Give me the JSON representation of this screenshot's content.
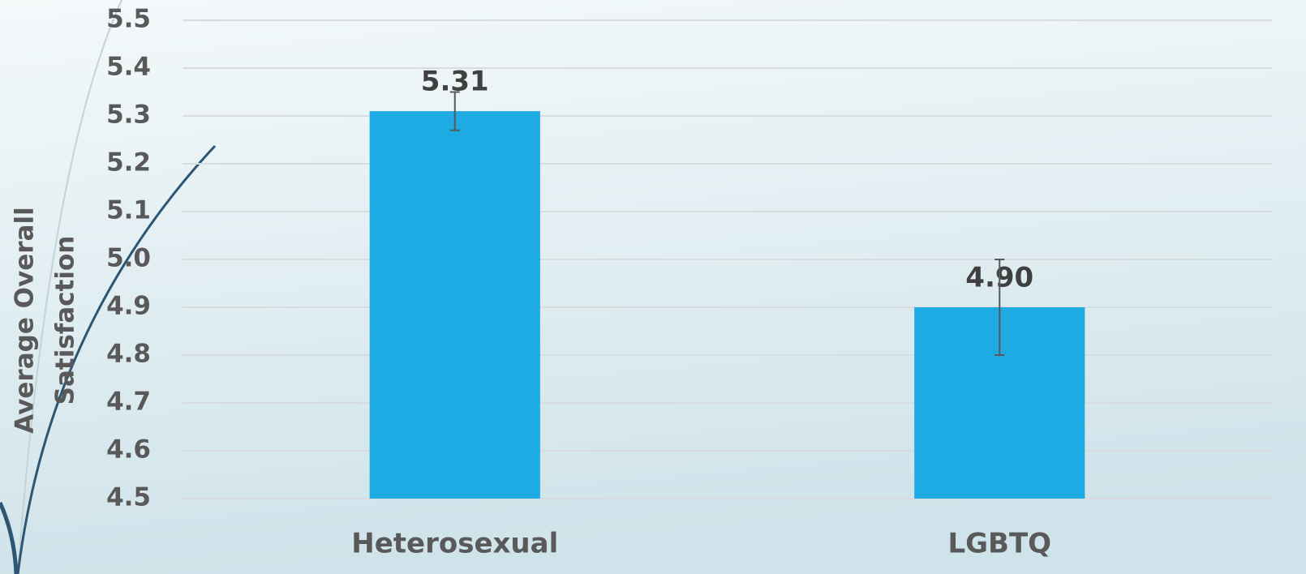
{
  "chart_data": {
    "type": "bar",
    "ylabel": [
      "Average Overall",
      "Satisfaction"
    ],
    "categories": [
      "Heterosexual",
      "LGBTQ"
    ],
    "values": [
      5.31,
      4.9
    ],
    "value_labels": [
      "5.31",
      "4.90"
    ],
    "errors": [
      0.04,
      0.1
    ],
    "color": "#1eaae2",
    "ylim": [
      4.5,
      5.5
    ],
    "yticks": [
      4.5,
      4.6,
      4.7,
      4.8,
      4.9,
      {
        "value": 5,
        "label": "5.0"
      },
      5.1,
      5.2,
      5.3,
      5.4,
      5.5
    ],
    "grid": true
  }
}
